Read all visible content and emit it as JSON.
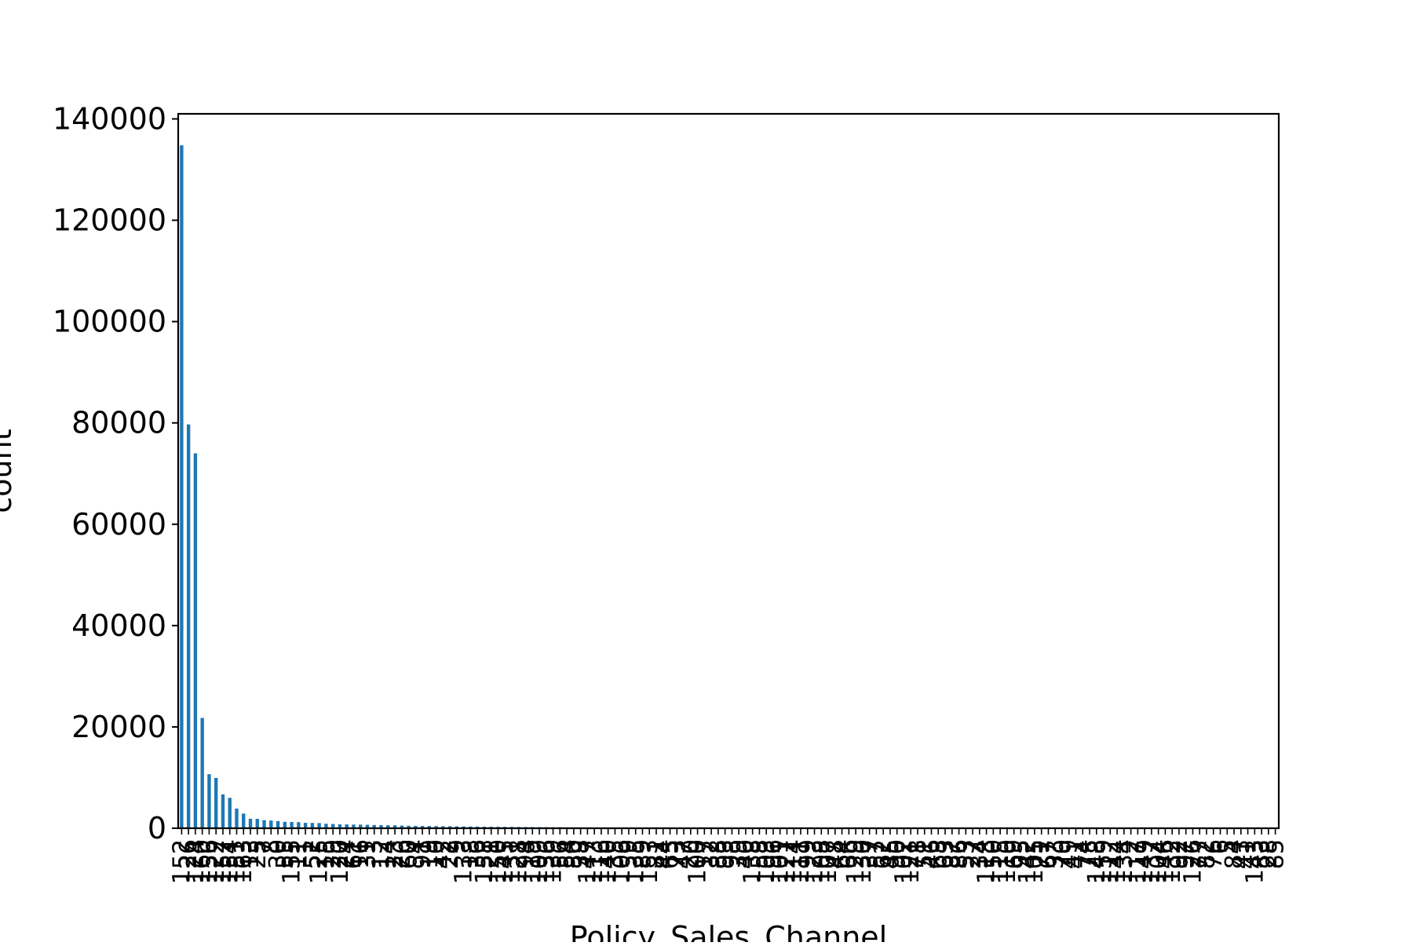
{
  "chart_data": {
    "type": "bar",
    "title": "",
    "xlabel": "Policy_Sales_Channel",
    "ylabel": "count",
    "ylim": [
      0,
      141000
    ],
    "yticks": [
      0,
      20000,
      40000,
      60000,
      80000,
      100000,
      120000,
      140000
    ],
    "ytick_labels": [
      "0",
      "20000",
      "40000",
      "60000",
      "80000",
      "100000",
      "120000",
      "140000"
    ],
    "grid": false,
    "legend": "none",
    "bar_color": "#1f77b4",
    "categories": [
      "152",
      "26",
      "124",
      "160",
      "156",
      "122",
      "157",
      "154",
      "151",
      "163",
      "13",
      "25",
      "7",
      "8",
      "30",
      "55",
      "155",
      "11",
      "1",
      "52",
      "125",
      "15",
      "29",
      "120",
      "24",
      "61",
      "16",
      "31",
      "3",
      "12",
      "14",
      "23",
      "26",
      "60",
      "4",
      "91",
      "19",
      "10",
      "42",
      "22",
      "9",
      "133",
      "18",
      "36",
      "158",
      "21",
      "150",
      "145",
      "131",
      "128",
      "94",
      "119",
      "109",
      "136",
      "139",
      "56",
      "54",
      "80",
      "38",
      "147",
      "113",
      "116",
      "140",
      "35",
      "106",
      "59",
      "135",
      "89",
      "153",
      "81",
      "44",
      "65",
      "73",
      "47",
      "20",
      "100",
      "17",
      "32",
      "88",
      "93",
      "98",
      "39",
      "40",
      "138",
      "58",
      "103",
      "96",
      "101",
      "127",
      "114",
      "111",
      "99",
      "123",
      "108",
      "107",
      "48",
      "64",
      "66",
      "129",
      "130",
      "37",
      "57",
      "62",
      "45",
      "90",
      "102",
      "121",
      "78",
      "51",
      "46",
      "68",
      "63",
      "87",
      "86",
      "53",
      "27",
      "34",
      "118",
      "50",
      "115",
      "110",
      "69",
      "95",
      "142",
      "105",
      "71",
      "67",
      "33",
      "70",
      "49",
      "41",
      "74",
      "75",
      "148",
      "159",
      "112",
      "144",
      "134",
      "2",
      "117",
      "149",
      "137",
      "104",
      "146",
      "132",
      "92",
      "97",
      "126",
      "77",
      "82",
      "76",
      "6",
      "5",
      "84",
      "43",
      "41",
      "143",
      "83",
      "28",
      "85"
    ],
    "values": [
      134784,
      79700,
      73995,
      21779,
      10661,
      9930,
      6684,
      5993,
      3885,
      2893,
      1865,
      1848,
      1598,
      1515,
      1410,
      1264,
      1234,
      1203,
      1074,
      1055,
      1026,
      888,
      843,
      769,
      761,
      727,
      715,
      681,
      642,
      617,
      600,
      578,
      530,
      498,
      470,
      455,
      437,
      425,
      404,
      393,
      380,
      360,
      342,
      330,
      318,
      300,
      290,
      278,
      266,
      254,
      242,
      232,
      222,
      212,
      202,
      192,
      182,
      172,
      164,
      156,
      148,
      140,
      132,
      124,
      116,
      108,
      100,
      94,
      88,
      82,
      76,
      70,
      64,
      58,
      54,
      50,
      46,
      42,
      38,
      34,
      30,
      28,
      26,
      24,
      22,
      20,
      18,
      16,
      14,
      12,
      10,
      9,
      8,
      7,
      6,
      5,
      5,
      4,
      4,
      4,
      3,
      3,
      3,
      3,
      2,
      2,
      2,
      2,
      2,
      2,
      2,
      2,
      1,
      1,
      1,
      1,
      1,
      1,
      1,
      1,
      1,
      1,
      1,
      1,
      1,
      1,
      1,
      1,
      1,
      1,
      1,
      1,
      1,
      1,
      1,
      1,
      1,
      1,
      1,
      1,
      1,
      1,
      1,
      1,
      1,
      1,
      1,
      1,
      1,
      1,
      1,
      1,
      1,
      1,
      1,
      1,
      1,
      1,
      1,
      1
    ]
  }
}
